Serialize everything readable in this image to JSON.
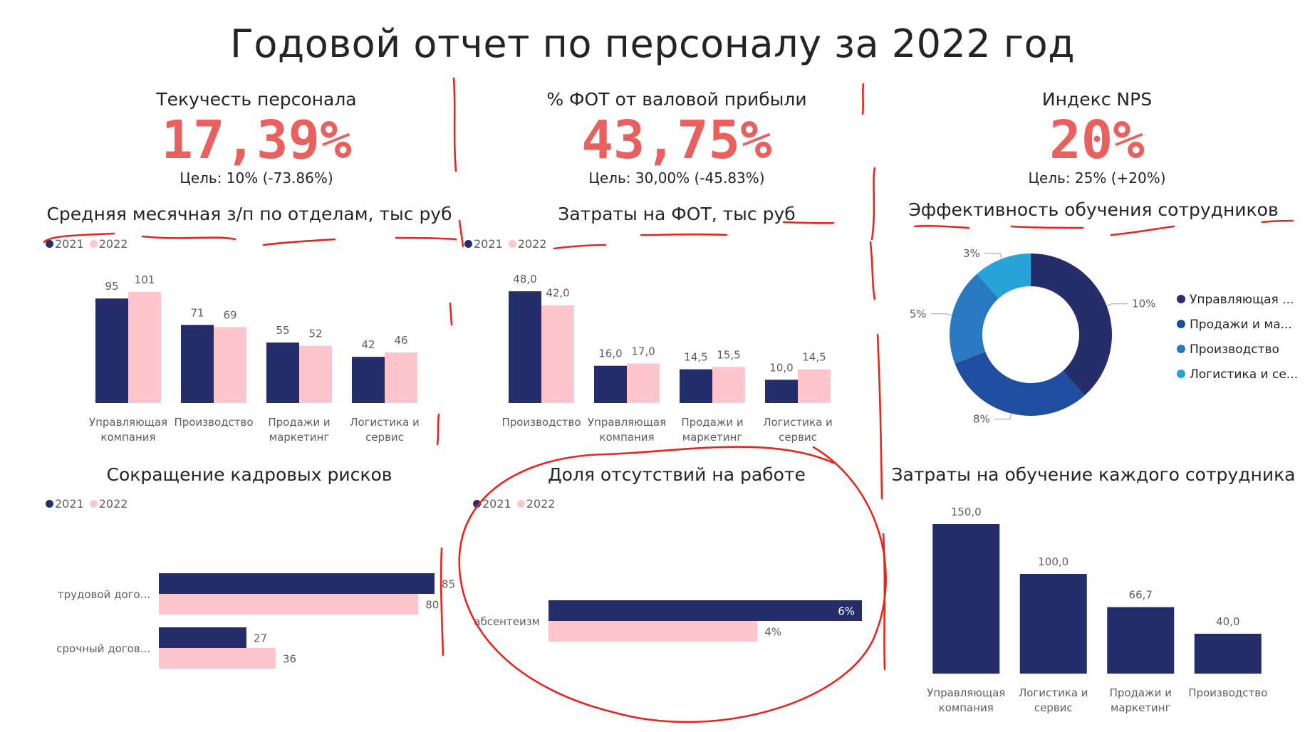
{
  "title": "Годовой отчет по персоналу за 2022 год",
  "kpis": [
    {
      "label": "Текучесть персонала",
      "value": "17,39%",
      "target": "Цель: 10% (-73.86%)"
    },
    {
      "label": "% ФОТ от валовой прибыли",
      "value": "43,75%",
      "target": "Цель: 30,00% (-45.83%)"
    },
    {
      "label": "Индекс NPS",
      "value": "20%",
      "target": "Цель: 25% (+20%)"
    }
  ],
  "legend": {
    "y2021": "2021",
    "y2022": "2022"
  },
  "colors": {
    "y2021": "#252d6b",
    "y2022": "#fcc6cc",
    "kpi": "#e8615e",
    "annotation": "#e8251c"
  },
  "chart_data": [
    {
      "id": "salary",
      "type": "bar",
      "title": "Средняя месячная з/п по отделам, тыс руб",
      "categories": [
        "Управляющая компания",
        "Производство",
        "Продажи и маркетинг",
        "Логистика и сервис"
      ],
      "series": [
        {
          "name": "2021",
          "values": [
            95,
            71,
            55,
            42
          ],
          "labels": [
            "95",
            "71",
            "55",
            "42"
          ]
        },
        {
          "name": "2022",
          "values": [
            101,
            69,
            52,
            46
          ],
          "labels": [
            "101",
            "69",
            "52",
            "46"
          ]
        }
      ],
      "ylim": [
        0,
        110
      ]
    },
    {
      "id": "fot",
      "type": "bar",
      "title": "Затраты на ФОТ, тыс руб",
      "categories": [
        "Производство",
        "Управляющая компания",
        "Продажи и маркетинг",
        "Логистика и сервис"
      ],
      "series": [
        {
          "name": "2021",
          "values": [
            48,
            16,
            14.5,
            10
          ],
          "labels": [
            "48,0",
            "16,0",
            "14,5",
            "10,0"
          ]
        },
        {
          "name": "2022",
          "values": [
            42,
            17,
            15.5,
            14.5
          ],
          "labels": [
            "42,0",
            "17,0",
            "15,5",
            "14,5"
          ]
        }
      ],
      "ylim": [
        0,
        52
      ]
    },
    {
      "id": "training",
      "type": "pie",
      "title": "Эффективность обучения сотрудников",
      "donut": true,
      "slices": [
        {
          "name": "Управляющая ...",
          "value": 10,
          "label": "10%",
          "color": "#252d6b"
        },
        {
          "name": "Продажи и ма...",
          "value": 8,
          "label": "8%",
          "color": "#1f4ea1"
        },
        {
          "name": "Производство",
          "value": 5,
          "label": "5%",
          "color": "#2979c1"
        },
        {
          "name": "Логистика и се...",
          "value": 3,
          "label": "3%",
          "color": "#27a3d7"
        }
      ],
      "legend_position": "right"
    },
    {
      "id": "risks",
      "type": "bar",
      "orientation": "horizontal",
      "title": "Сокращение кадровых рисков",
      "categories": [
        "трудовой дого...",
        "срочный догов..."
      ],
      "series": [
        {
          "name": "2021",
          "values": [
            85,
            27
          ],
          "labels": [
            "85",
            "27"
          ]
        },
        {
          "name": "2022",
          "values": [
            80,
            36
          ],
          "labels": [
            "80",
            "36"
          ]
        }
      ],
      "xlim": [
        0,
        85
      ]
    },
    {
      "id": "absence",
      "type": "bar",
      "orientation": "horizontal",
      "title": "Доля отсутствий на работе",
      "categories": [
        "абсентеизм"
      ],
      "series": [
        {
          "name": "2021",
          "values": [
            6
          ],
          "labels": [
            "6%"
          ]
        },
        {
          "name": "2022",
          "values": [
            4
          ],
          "labels": [
            "4%"
          ]
        }
      ],
      "xlim": [
        0,
        6
      ]
    },
    {
      "id": "cost",
      "type": "bar",
      "title": "Затраты на обучение каждого сотрудника",
      "categories": [
        "Управляющая компания",
        "Логистика и сервис",
        "Продажи и маркетинг",
        "Производство"
      ],
      "series": [
        {
          "values": [
            150,
            100,
            66.7,
            40
          ],
          "labels": [
            "150,0",
            "100,0",
            "66,7",
            "40,0"
          ]
        }
      ],
      "ylim": [
        0,
        150
      ]
    }
  ]
}
